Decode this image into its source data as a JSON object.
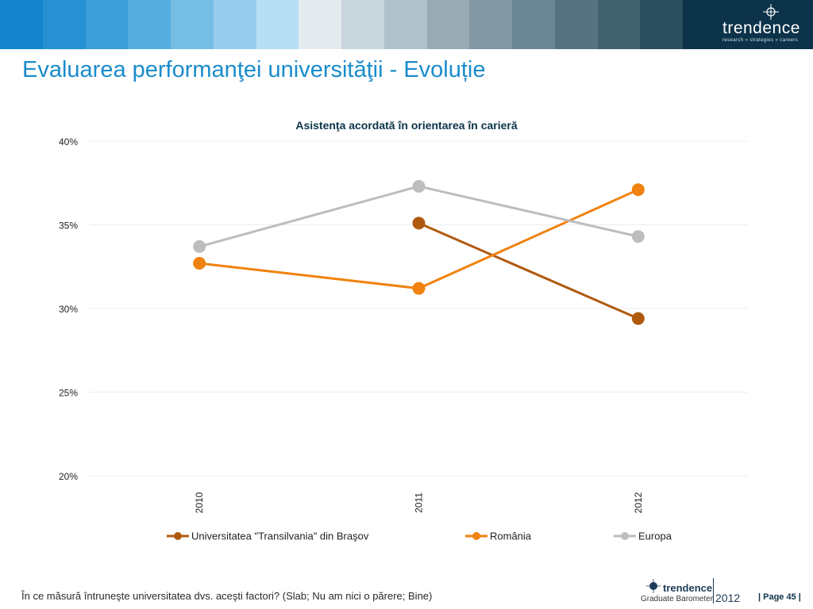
{
  "header": {
    "brand_name": "trendence",
    "brand_tagline": "research » strategies » careers",
    "band_colors": [
      "#1584cc",
      "#2690d2",
      "#3b9ed8",
      "#56ade0",
      "#76bee6",
      "#97cdec",
      "#b7dff4",
      "#e4ebef",
      "#c8d5dc",
      "#b0c1ca",
      "#99acb6",
      "#8299a5",
      "#6b8794",
      "#557480",
      "#40616e",
      "#2c4f5e"
    ]
  },
  "page_title": "Evaluarea performanţei universităţii - Evoluție",
  "chart_data": {
    "type": "line",
    "title": "Asistenţa acordată în orientarea în carieră",
    "categories": [
      "2010",
      "2011",
      "2012"
    ],
    "y_ticks": [
      "40%",
      "35%",
      "30%",
      "25%",
      "20%"
    ],
    "ylim": [
      20,
      40
    ],
    "grid": true,
    "legend_position": "bottom",
    "series": [
      {
        "name": "Universitatea \"Transilvania\" din Braşov",
        "values": [
          null,
          35.1,
          29.4
        ],
        "color": "#b05a10"
      },
      {
        "name": "România",
        "values": [
          32.7,
          31.2,
          37.1
        ],
        "color": "#f0820f"
      },
      {
        "name": "Europa",
        "values": [
          33.7,
          37.3,
          34.3
        ],
        "color": "#bdbdbd"
      }
    ]
  },
  "footer": {
    "question": "În ce măsură întruneşte universitatea dvs. aceşti factori? (Slab; Nu am nici o părere; Bine)",
    "logo_brand": "trendence",
    "logo_sub": "Graduate Barometer",
    "logo_year": "2012",
    "page_label": "| Page 45 |"
  }
}
